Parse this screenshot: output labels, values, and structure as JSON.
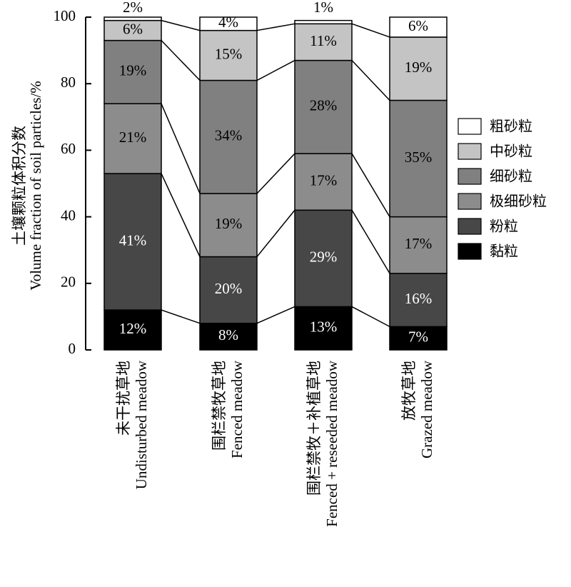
{
  "chart_data": {
    "type": "bar",
    "stacked": true,
    "ylabel_zh": "土壤颗粒体积分数",
    "ylabel_en": "Volume fraction of soil particles/%",
    "ylim": [
      0,
      100
    ],
    "yticks": [
      "0",
      "20",
      "40",
      "60",
      "80",
      "100"
    ],
    "categories": [
      {
        "zh": "未干扰草地",
        "en": "Undisturbed meadow"
      },
      {
        "zh": "围栏禁牧草地",
        "en": "Fenced meadow"
      },
      {
        "zh": "围栏禁牧＋补植草地",
        "en": "Fenced + reseeded meadow"
      },
      {
        "zh": "放牧草地",
        "en": "Grazed meadow"
      }
    ],
    "series": [
      {
        "name": "黏粒",
        "color": "#000000",
        "text_color": "#ffffff",
        "values": [
          12,
          8,
          13,
          7
        ],
        "labels": [
          "12%",
          "8%",
          "13%",
          "7%"
        ]
      },
      {
        "name": "粉粒",
        "color": "#474747",
        "text_color": "#ffffff",
        "values": [
          41,
          20,
          29,
          16
        ],
        "labels": [
          "41%",
          "20%",
          "29%",
          "16%"
        ]
      },
      {
        "name": "极细砂粒",
        "color": "#8c8c8c",
        "text_color": "#000000",
        "values": [
          21,
          19,
          17,
          17
        ],
        "labels": [
          "21%",
          "19%",
          "17%",
          "17%"
        ]
      },
      {
        "name": "细砂粒",
        "color": "#808080",
        "text_color": "#000000",
        "values": [
          19,
          34,
          28,
          35
        ],
        "labels": [
          "19%",
          "34%",
          "28%",
          "35%"
        ]
      },
      {
        "name": "中砂粒",
        "color": "#c4c4c4",
        "text_color": "#000000",
        "values": [
          6,
          15,
          11,
          19
        ],
        "labels": [
          "6%",
          "15%",
          "11%",
          "19%"
        ]
      },
      {
        "name": "粗砂粒",
        "color": "#ffffff",
        "text_color": "#000000",
        "values": [
          2,
          4,
          1,
          6
        ],
        "labels": [
          "2%",
          "4%",
          "1%",
          "6%"
        ]
      }
    ],
    "legend": [
      "粗砂粒",
      "中砂粒",
      "细砂粒",
      "极细砂粒",
      "粉粒",
      "黏粒"
    ],
    "legend_position": "right",
    "grid": false
  }
}
